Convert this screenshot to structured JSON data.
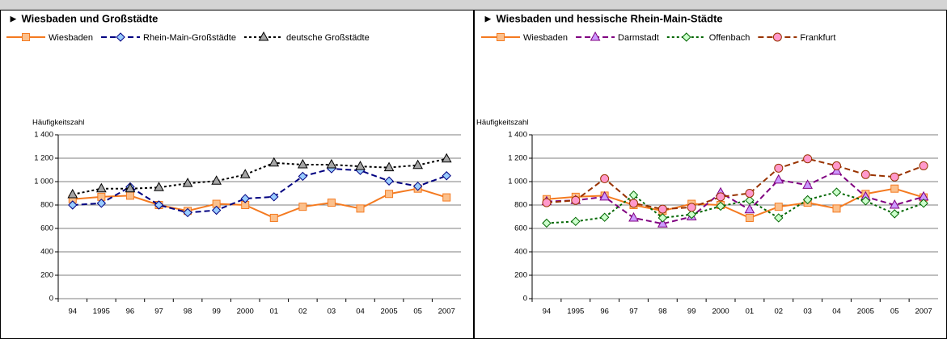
{
  "chart_data": [
    {
      "type": "line",
      "title": "► Wiesbaden und Großstädte",
      "y_label": "Häufigkeitszahl",
      "categories": [
        "94",
        "1995",
        "96",
        "97",
        "98",
        "99",
        "2000",
        "01",
        "02",
        "03",
        "04",
        "2005",
        "05",
        "2007"
      ],
      "ylim": [
        0,
        1400
      ],
      "yticks": [
        0,
        200,
        400,
        600,
        800,
        {
          "value": 1000,
          "label": "1 000"
        },
        {
          "value": 1200,
          "label": "1 200"
        },
        {
          "value": 1400,
          "label": "1 400"
        }
      ],
      "grid": true,
      "series": [
        {
          "name": "Wiesbaden",
          "color": "#f47a20",
          "marker": "square",
          "marker_fill": "#fbc08c",
          "dash": "solid",
          "values": [
            850,
            870,
            880,
            800,
            750,
            810,
            800,
            690,
            785,
            820,
            770,
            895,
            940,
            865
          ]
        },
        {
          "name": "Rhein-Main-Großstädte",
          "color": "#000080",
          "marker": "diamond",
          "marker_fill": "#99ccff",
          "dash": "dashed",
          "values": [
            800,
            815,
            955,
            800,
            735,
            755,
            855,
            870,
            1045,
            1110,
            1095,
            1005,
            960,
            1050
          ]
        },
        {
          "name": "deutsche Großstädte",
          "color": "#000000",
          "marker": "triangle",
          "marker_fill": "#a6a6a6",
          "dash": "dotted",
          "values": [
            890,
            940,
            940,
            950,
            985,
            1005,
            1060,
            1160,
            1145,
            1145,
            1130,
            1120,
            1140,
            1195
          ]
        }
      ]
    },
    {
      "type": "line",
      "title": "► Wiesbaden und hessische Rhein-Main-Städte",
      "y_label": "Häufigkeitszahl",
      "categories": [
        "94",
        "1995",
        "96",
        "97",
        "98",
        "99",
        "2000",
        "01",
        "02",
        "03",
        "04",
        "2005",
        "05",
        "2007"
      ],
      "ylim": [
        0,
        1400
      ],
      "yticks": [
        0,
        200,
        400,
        600,
        800,
        {
          "value": 1000,
          "label": "1 000"
        },
        {
          "value": 1200,
          "label": "1 200"
        },
        {
          "value": 1400,
          "label": "1 400"
        }
      ],
      "grid": true,
      "series": [
        {
          "name": "Wiesbaden",
          "color": "#f47a20",
          "marker": "square",
          "marker_fill": "#fbc08c",
          "dash": "solid",
          "values": [
            850,
            870,
            880,
            800,
            750,
            810,
            800,
            690,
            785,
            820,
            770,
            895,
            940,
            865
          ]
        },
        {
          "name": "Darmstadt",
          "color": "#800080",
          "marker": "triangle",
          "marker_fill": "#cc99ff",
          "dash": "dashed",
          "values": [
            830,
            840,
            870,
            690,
            640,
            700,
            905,
            760,
            1015,
            970,
            1090,
            870,
            800,
            870
          ]
        },
        {
          "name": "Offenbach",
          "color": "#006600",
          "marker": "diamond",
          "marker_fill": "#ccffcc",
          "dash": "dotted",
          "values": [
            645,
            660,
            695,
            885,
            690,
            720,
            790,
            840,
            690,
            845,
            910,
            835,
            725,
            815
          ]
        },
        {
          "name": "Frankfurt",
          "color": "#993300",
          "marker": "circle",
          "marker_fill": "#ff99cc",
          "dash": "dashed",
          "values": [
            820,
            840,
            1025,
            815,
            765,
            780,
            870,
            900,
            1115,
            1195,
            1135,
            1060,
            1040,
            1135
          ]
        }
      ]
    }
  ]
}
